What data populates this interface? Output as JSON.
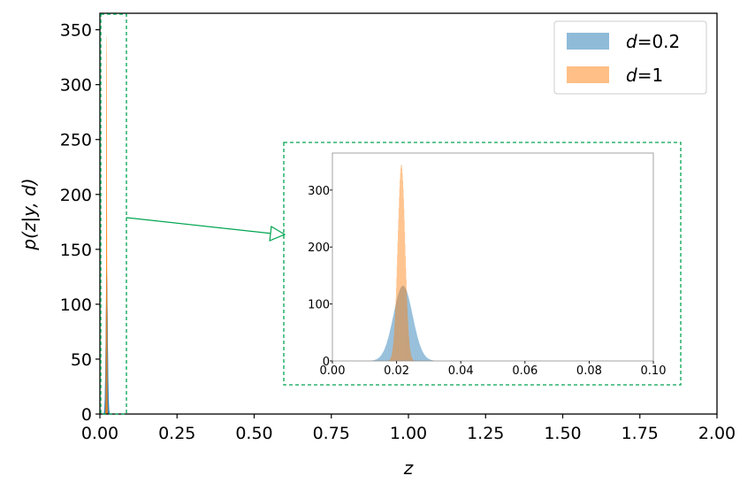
{
  "chart_data": {
    "type": "histogram",
    "xlabel": "z",
    "ylabel": "p(z|y, d)",
    "xlim": [
      0,
      2.0
    ],
    "ylim": [
      0,
      365
    ],
    "xticks": [
      "0.00",
      "0.25",
      "0.50",
      "0.75",
      "1.00",
      "1.25",
      "1.50",
      "1.75",
      "2.00"
    ],
    "yticks": [
      "0",
      "50",
      "100",
      "150",
      "200",
      "250",
      "300",
      "350"
    ],
    "legend_position": "top-right",
    "series": [
      {
        "name": "d=0.2",
        "name_var": "d",
        "name_val": "=0.2",
        "color": "#1f77b4",
        "alpha": 0.5,
        "mean": 0.022,
        "std": 0.003,
        "peak": 132
      },
      {
        "name": "d=1",
        "name_var": "d",
        "name_val": "=1",
        "color": "#ff7f0e",
        "alpha": 0.5,
        "mean": 0.0215,
        "std": 0.00115,
        "peak": 345
      }
    ],
    "inset": {
      "xlim": [
        0.0,
        0.1
      ],
      "ylim": [
        0,
        365
      ],
      "xticks": [
        "0.00",
        "0.02",
        "0.04",
        "0.06",
        "0.08",
        "0.10"
      ],
      "yticks": [
        "0",
        "100",
        "200",
        "300"
      ]
    },
    "zoom_region": {
      "x": [
        0.0,
        0.085
      ],
      "y": [
        0,
        365
      ]
    },
    "annotation_color": "#00a550"
  }
}
